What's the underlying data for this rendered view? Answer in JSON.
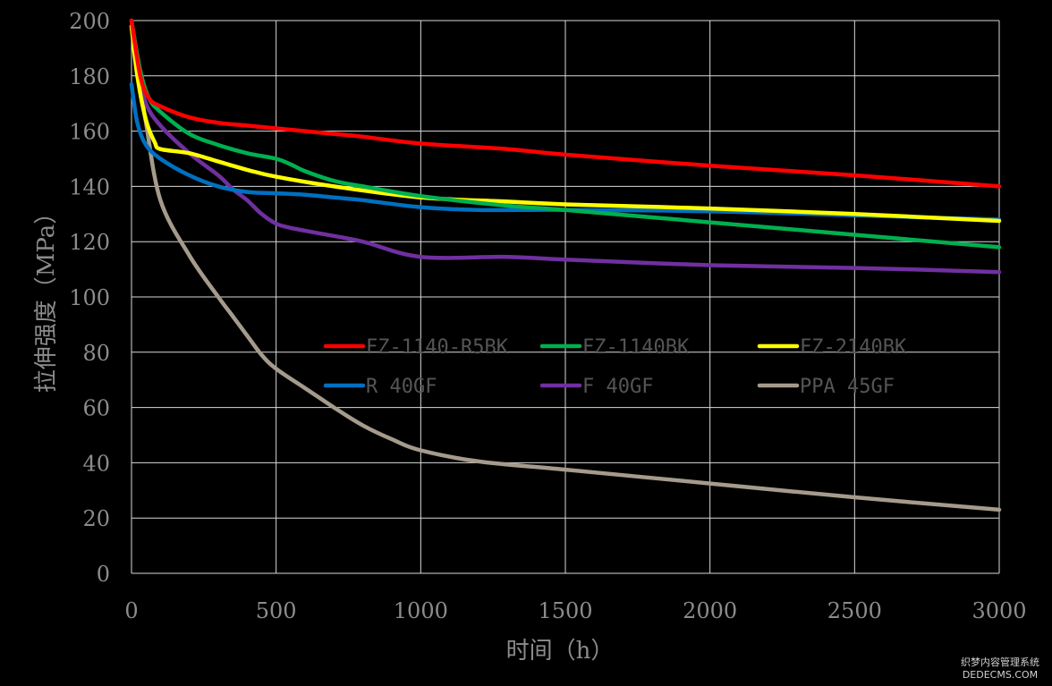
{
  "chart_data": {
    "type": "line",
    "xlabel": "时间（h）",
    "ylabel": "拉伸强度（MPa）",
    "xlim": [
      0,
      3000
    ],
    "ylim": [
      0,
      200
    ],
    "x_ticks": [
      "0",
      "500",
      "1000",
      "1500",
      "2000",
      "2500",
      "3000"
    ],
    "y_ticks": [
      "0",
      "20",
      "40",
      "60",
      "80",
      "100",
      "120",
      "140",
      "160",
      "180",
      "200"
    ],
    "grid": true,
    "legend_position": "center",
    "series": [
      {
        "name": "FZ-1140-R5BK",
        "color": "#ff0000",
        "x": [
          0,
          30,
          60,
          100,
          200,
          300,
          400,
          500,
          600,
          700,
          800,
          1000,
          1300,
          1500,
          2000,
          2500,
          3000
        ],
        "y": [
          200,
          180,
          172,
          169,
          165,
          163,
          162,
          161,
          160,
          159,
          158,
          155.5,
          153.5,
          151.5,
          147.5,
          144,
          140
        ]
      },
      {
        "name": "FZ-1140BK",
        "color": "#00b050",
        "x": [
          0,
          30,
          60,
          100,
          200,
          300,
          400,
          500,
          550,
          600,
          700,
          800,
          1000,
          1300,
          1500,
          2000,
          2500,
          3000
        ],
        "y": [
          200,
          182,
          172,
          167,
          159,
          155,
          152,
          150,
          148,
          145.5,
          142,
          140,
          136.5,
          133,
          131.5,
          127,
          122.5,
          118
        ]
      },
      {
        "name": "FZ-2140BK",
        "color": "#ffff00",
        "x": [
          0,
          20,
          50,
          80,
          100,
          200,
          300,
          400,
          500,
          700,
          1000,
          1300,
          1500,
          2000,
          2500,
          3000
        ],
        "y": [
          198,
          180,
          164,
          156,
          153.5,
          152,
          149,
          146,
          143.5,
          140,
          136,
          134.5,
          133.5,
          132,
          130,
          127.5
        ]
      },
      {
        "name": "R 40GF",
        "color": "#0070c0",
        "x": [
          0,
          20,
          50,
          100,
          200,
          300,
          400,
          500,
          600,
          700,
          800,
          1000,
          1200,
          1500,
          2000,
          2500,
          3000
        ],
        "y": [
          177,
          163,
          155,
          150,
          144,
          140,
          138,
          137.5,
          137,
          136,
          135,
          132.5,
          131.5,
          131.5,
          131,
          129.5,
          128
        ]
      },
      {
        "name": "F 40GF",
        "color": "#7030a0",
        "x": [
          0,
          20,
          50,
          100,
          200,
          300,
          350,
          400,
          450,
          500,
          550,
          650,
          800,
          1000,
          1300,
          1500,
          2000,
          2500,
          3000
        ],
        "y": [
          200,
          183,
          170,
          162,
          152,
          144,
          139,
          135,
          130,
          126.5,
          125,
          123,
          120,
          114.5,
          114.5,
          113.5,
          111.5,
          110.5,
          109
        ]
      },
      {
        "name": "PPA 45GF",
        "color": "#a59b8d",
        "x": [
          0,
          20,
          50,
          100,
          200,
          300,
          350,
          400,
          450,
          500,
          600,
          700,
          800,
          900,
          1000,
          1200,
          1500,
          2000,
          2500,
          3000
        ],
        "y": [
          198,
          183,
          163,
          135,
          115,
          100,
          93,
          86,
          79,
          74,
          67,
          60,
          53.5,
          48.5,
          44.5,
          40.5,
          37.5,
          32.5,
          27.5,
          23
        ]
      }
    ]
  },
  "watermark": {
    "line1": "织梦内容管理系统",
    "line2": "DEDECMS.COM"
  }
}
